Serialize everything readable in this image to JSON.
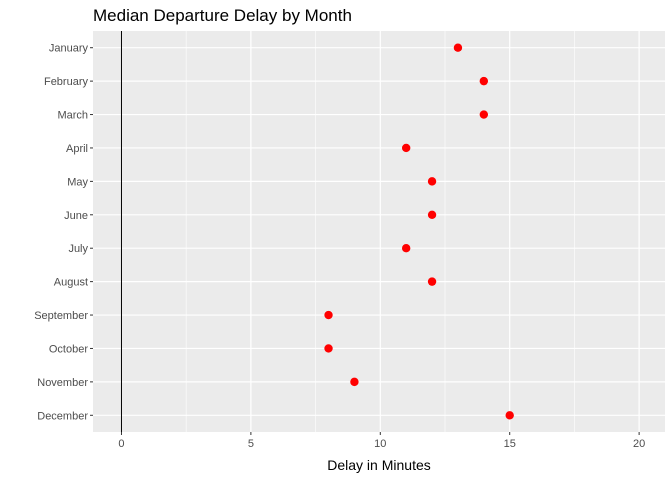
{
  "chart_data": {
    "type": "scatter",
    "title": "Median Departure Delay by Month",
    "xlabel": "Delay in Minutes",
    "ylabel": "",
    "xlim": [
      -1.1,
      21
    ],
    "x_ticks": [
      "0",
      "5",
      "10",
      "15",
      "20"
    ],
    "x_tick_values": [
      0,
      5,
      10,
      15,
      20
    ],
    "categories": [
      "January",
      "February",
      "March",
      "April",
      "May",
      "June",
      "July",
      "August",
      "September",
      "October",
      "November",
      "December"
    ],
    "values": [
      13,
      14,
      14,
      11,
      12,
      12,
      11,
      12,
      8,
      8,
      9,
      15
    ],
    "reference_line_x": 0,
    "grid": true,
    "panel_color": "#ebebeb",
    "grid_color": "#ffffff",
    "point_color": "#ff0000",
    "reference_line_color": "#000000"
  }
}
